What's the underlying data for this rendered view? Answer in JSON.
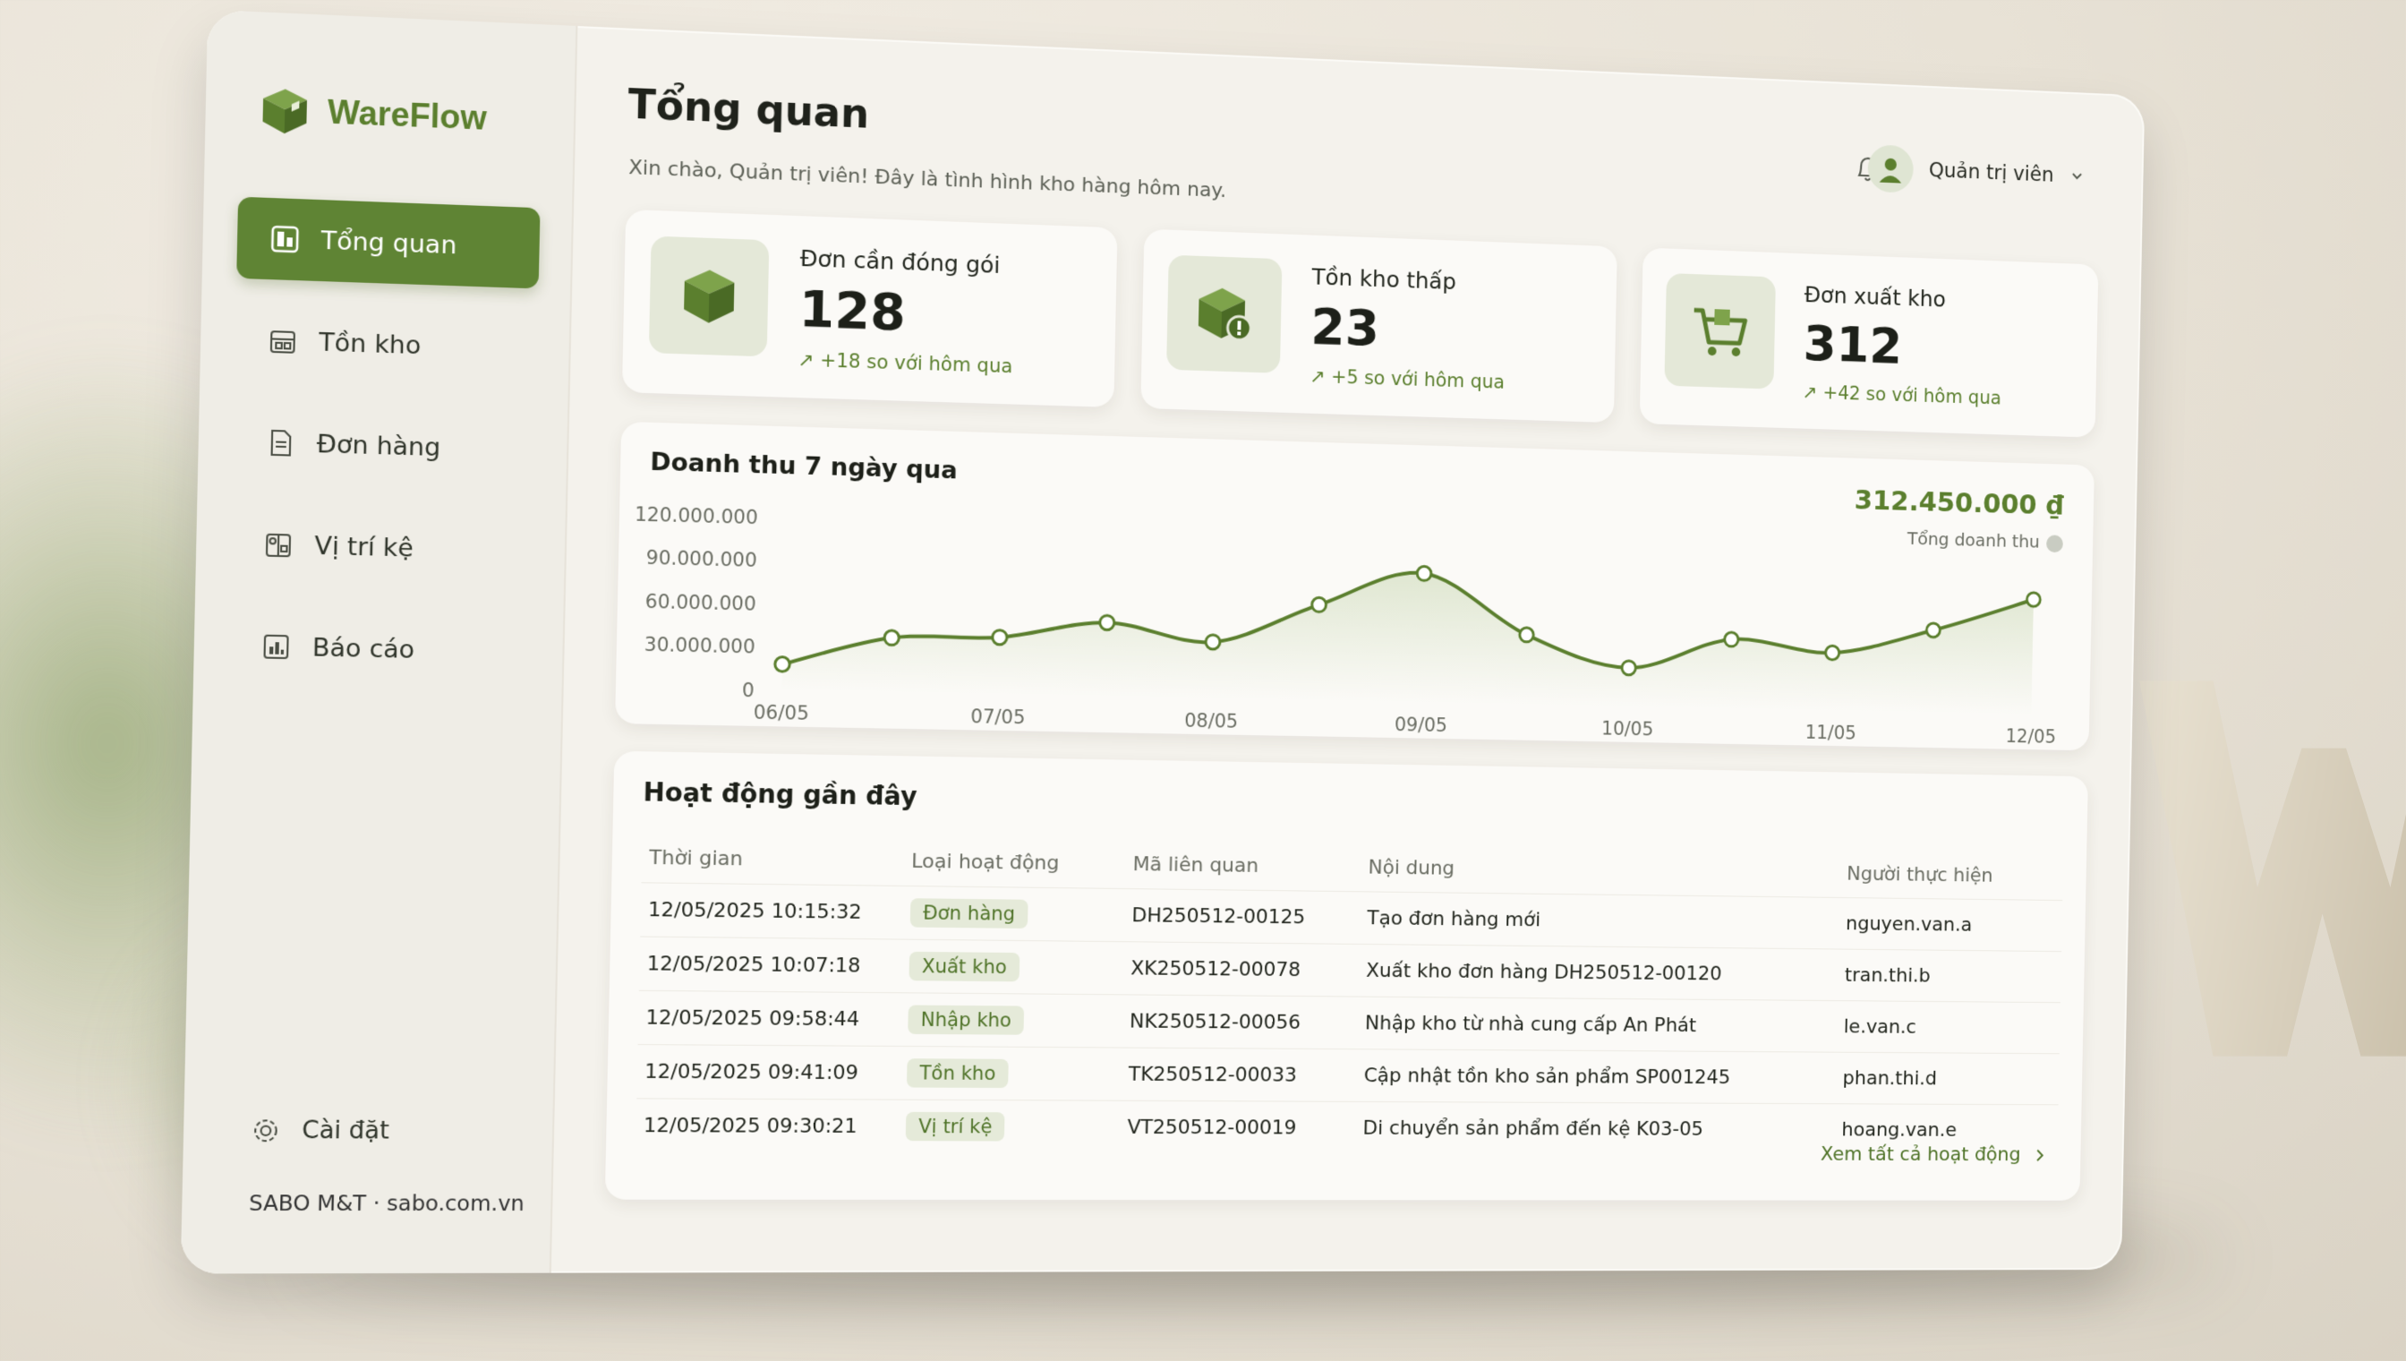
{
  "brand": {
    "name": "WareFlow",
    "icon": "box-icon"
  },
  "sidebar": {
    "items": [
      {
        "label": "Tổng quan",
        "icon": "dashboard-icon",
        "active": true
      },
      {
        "label": "Tồn kho",
        "icon": "inventory-icon",
        "active": false
      },
      {
        "label": "Đơn hàng",
        "icon": "document-icon",
        "active": false
      },
      {
        "label": "Vị trí kệ",
        "icon": "map-icon",
        "active": false
      },
      {
        "label": "Báo cáo",
        "icon": "report-icon",
        "active": false
      }
    ],
    "settings_label": "Cài đặt",
    "footer": "SABO M&T · sabo.com.vn"
  },
  "header": {
    "title": "Tổng quan",
    "subtitle": "Xin chào, Quản trị viên! Đây là tình hình kho hàng hôm nay.",
    "user": "Quản trị viên"
  },
  "stats": [
    {
      "label": "Đơn cần đóng gói",
      "value": "128",
      "change": "+18 so với hôm qua",
      "icon": "box-icon"
    },
    {
      "label": "Tồn kho thấp",
      "value": "23",
      "change": "+5 so với hôm qua",
      "icon": "box-alert-icon"
    },
    {
      "label": "Đơn xuất kho",
      "value": "312",
      "change": "+42 so với hôm qua",
      "icon": "cart-icon"
    }
  ],
  "chart": {
    "title": "Doanh thu 7 ngày qua",
    "total": "312.450.000 ₫",
    "total_label": "Tổng doanh thu"
  },
  "chart_data": {
    "type": "line",
    "title": "Doanh thu 7 ngày qua",
    "x": [
      "06/05",
      "06/05b",
      "07/05",
      "07/05b",
      "08/05",
      "08/05b",
      "09/05",
      "09/05b",
      "10/05",
      "10/05b",
      "11/05",
      "11/05b",
      "12/05"
    ],
    "x_tick_labels": [
      "06/05",
      "07/05",
      "08/05",
      "09/05",
      "10/05",
      "11/05",
      "12/05"
    ],
    "y_tick_labels": [
      "120.000.000",
      "90.000.000",
      "60.000.000",
      "30.000.000",
      "0"
    ],
    "values": [
      18000000,
      38000000,
      40000000,
      52000000,
      40000000,
      68000000,
      92000000,
      50000000,
      28000000,
      50000000,
      42000000,
      60000000,
      84000000
    ],
    "ylim": [
      0,
      120000000
    ],
    "color": "#5b7f2e"
  },
  "activity": {
    "title": "Hoạt động gần đây",
    "columns": [
      "Thời gian",
      "Loại hoạt động",
      "Mã liên quan",
      "Nội dung",
      "Người thực hiện"
    ],
    "rows": [
      {
        "time": "12/05/2025 10:15:32",
        "type": "Đơn hàng",
        "code": "DH250512-00125",
        "content": "Tạo đơn hàng mới",
        "user": "nguyen.van.a"
      },
      {
        "time": "12/05/2025 10:07:18",
        "type": "Xuất kho",
        "code": "XK250512-00078",
        "content": "Xuất kho đơn hàng DH250512-00120",
        "user": "tran.thi.b"
      },
      {
        "time": "12/05/2025 09:58:44",
        "type": "Nhập kho",
        "code": "NK250512-00056",
        "content": "Nhập kho từ nhà cung cấp An Phát",
        "user": "le.van.c"
      },
      {
        "time": "12/05/2025 09:41:09",
        "type": "Tồn kho",
        "code": "TK250512-00033",
        "content": "Cập nhật tồn kho sản phẩm SP001245",
        "user": "phan.thi.d"
      },
      {
        "time": "12/05/2025 09:30:21",
        "type": "Vị trí kệ",
        "code": "VT250512-00019",
        "content": "Di chuyển sản phẩm đến kệ K03-05",
        "user": "hoang.van.e"
      }
    ],
    "view_all": "Xem tất cả hoạt động"
  }
}
